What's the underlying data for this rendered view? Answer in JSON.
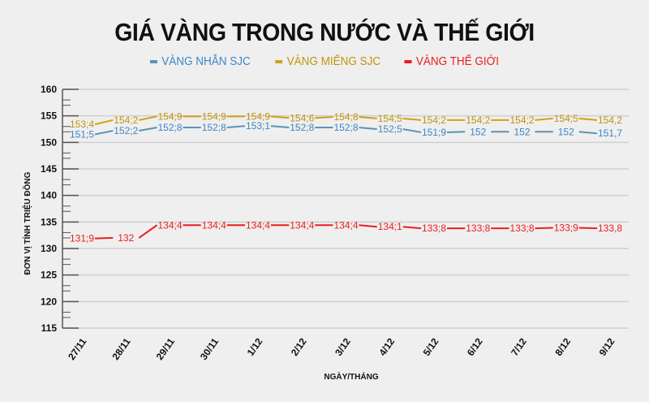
{
  "title": "GIÁ VÀNG TRONG NƯỚC VÀ THẾ GIỚI",
  "chart_data": {
    "type": "line",
    "title": "GIÁ VÀNG TRONG NƯỚC VÀ THẾ GIỚI",
    "xlabel": "NGÀY/THÁNG",
    "ylabel": "ĐƠN VỊ TÍNH TRIỆU ĐỒNG",
    "ylim": [
      115,
      160
    ],
    "yticks": [
      115,
      120,
      125,
      130,
      135,
      140,
      145,
      150,
      155,
      160
    ],
    "categories": [
      "27/11",
      "28/11",
      "29/11",
      "30/11",
      "1/12",
      "2/12",
      "3/12",
      "4/12",
      "5/12",
      "6/12",
      "7/12",
      "8/12",
      "9/12"
    ],
    "legend_position": "top",
    "grid": true,
    "series": [
      {
        "name": "VÀNG NHẪN SJC",
        "color": "#5b93b5",
        "text_color": "#3c86c6",
        "values": [
          151.5,
          152.2,
          152.8,
          152.8,
          153.1,
          152.8,
          152.8,
          152.5,
          151.9,
          152,
          152,
          152,
          151.7
        ],
        "labels": [
          "151;5",
          "152;2",
          "152;8",
          "152;8",
          "153;1",
          "152;8",
          "152;8",
          "152;5",
          "151;9",
          "152",
          "152",
          "152",
          "151,7"
        ]
      },
      {
        "name": "VÀNG MIẾNG SJC",
        "color": "#d4a017",
        "text_color": "#c0940a",
        "values": [
          153.4,
          154.2,
          154.9,
          154.9,
          154.9,
          154.6,
          154.8,
          154.5,
          154.2,
          154.2,
          154.2,
          154.5,
          154.2
        ],
        "labels": [
          "153;4",
          "154;2",
          "154;9",
          "154;9",
          "154;9",
          "154;6",
          "154;8",
          "154;5",
          "154;2",
          "154;2",
          "154;2",
          "154;5",
          "154,2"
        ]
      },
      {
        "name": "VÀNG THẾ GIỚI",
        "color": "#ee1c1c",
        "text_color": "#ee1c1c",
        "values": [
          131.9,
          132,
          134.4,
          134.4,
          134.4,
          134.4,
          134.4,
          134.1,
          133.8,
          133.8,
          133.8,
          133.9,
          133.8
        ],
        "labels": [
          "131;9",
          "132",
          "134;4",
          "134;4",
          "134;4",
          "134;4",
          "134;4",
          "134;1",
          "133;8",
          "133;8",
          "133;8",
          "133;9",
          "133,8"
        ]
      }
    ]
  }
}
